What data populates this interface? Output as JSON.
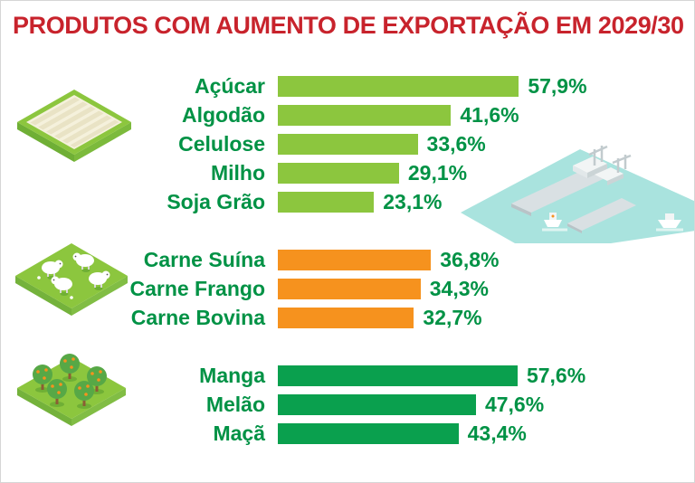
{
  "title": "PRODUTOS COM AUMENTO DE EXPORTAÇÃO EM 2029/30",
  "colors": {
    "title": "#c8232c",
    "label": "#009245",
    "value": "#009245",
    "bar_crops": "#8cc63e",
    "bar_meat": "#f6921e",
    "bar_fruit": "#0aa04e",
    "water": "#a9e3de"
  },
  "icons": [
    "field-crops-icon",
    "livestock-icon",
    "orchard-icon",
    "port-ships-icon"
  ],
  "chart_data": {
    "type": "bar",
    "orientation": "horizontal",
    "unit": "%",
    "value_range": [
      0,
      60
    ],
    "title": "PRODUTOS COM AUMENTO DE EXPORTAÇÃO EM 2029/30",
    "groups": [
      {
        "name": "graos",
        "color": "#8cc63e",
        "items": [
          {
            "label": "Açúcar",
            "value": 57.9,
            "display": "57,9%"
          },
          {
            "label": "Algodão",
            "value": 41.6,
            "display": "41,6%"
          },
          {
            "label": "Celulose",
            "value": 33.6,
            "display": "33,6%"
          },
          {
            "label": "Milho",
            "value": 29.1,
            "display": "29,1%"
          },
          {
            "label": "Soja Grão",
            "value": 23.1,
            "display": "23,1%"
          }
        ]
      },
      {
        "name": "carnes",
        "color": "#f6921e",
        "items": [
          {
            "label": "Carne Suína",
            "value": 36.8,
            "display": "36,8%"
          },
          {
            "label": "Carne Frango",
            "value": 34.3,
            "display": "34,3%"
          },
          {
            "label": "Carne Bovina",
            "value": 32.7,
            "display": "32,7%"
          }
        ]
      },
      {
        "name": "frutas",
        "color": "#0aa04e",
        "items": [
          {
            "label": "Manga",
            "value": 57.6,
            "display": "57,6%"
          },
          {
            "label": "Melão",
            "value": 47.6,
            "display": "47,6%"
          },
          {
            "label": "Maçã",
            "value": 43.4,
            "display": "43,4%"
          }
        ]
      }
    ]
  }
}
